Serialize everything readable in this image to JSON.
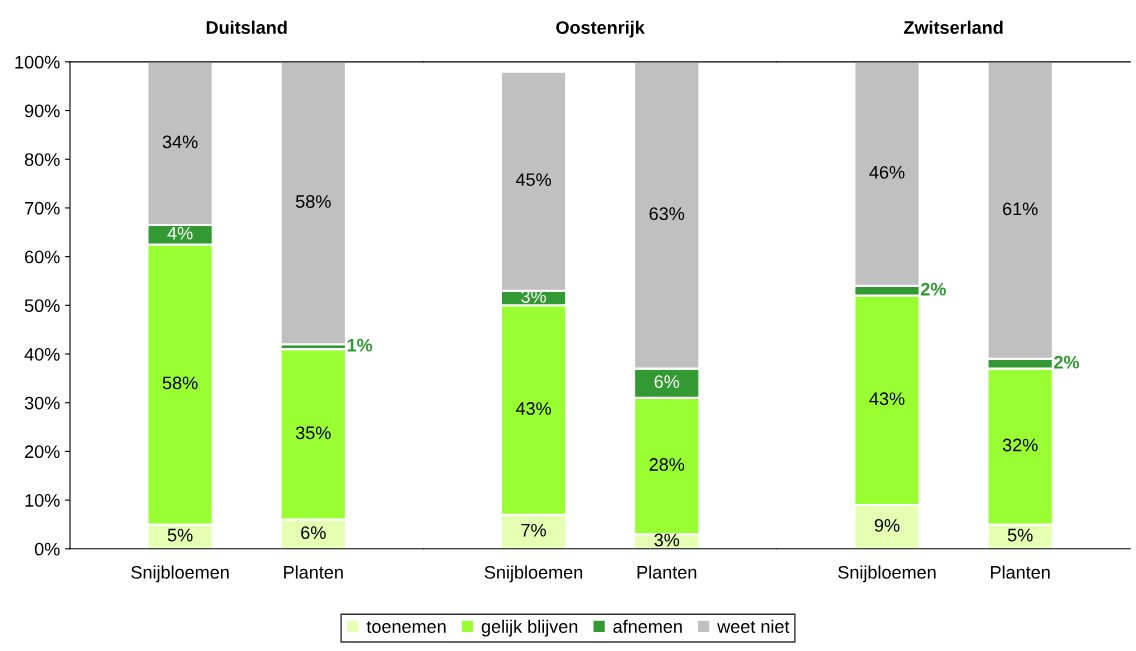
{
  "chart_data": [
    {
      "type": "bar",
      "stacked": true,
      "title": "Duitsland",
      "categories": [
        "Snijbloemen",
        "Planten"
      ],
      "ylim": [
        0,
        100
      ],
      "yticks": [
        {
          "value": 0,
          "label": "0%"
        },
        {
          "value": 10,
          "label": "10%"
        },
        {
          "value": 20,
          "label": "20%"
        },
        {
          "value": 30,
          "label": "30%"
        },
        {
          "value": 40,
          "label": "40%"
        },
        {
          "value": 50,
          "label": "50%"
        },
        {
          "value": 60,
          "label": "60%"
        },
        {
          "value": 70,
          "label": "70%"
        },
        {
          "value": 80,
          "label": "80%"
        },
        {
          "value": 90,
          "label": "90%"
        },
        {
          "value": 100,
          "label": "100%"
        }
      ],
      "legend": "bottom",
      "series": [
        {
          "name": "toenemen",
          "color": "#e5ffb3",
          "values": [
            5,
            6
          ],
          "value_labels": [
            "5%",
            "6%"
          ]
        },
        {
          "name": "gelijk blijven",
          "color": "#99ff33",
          "values": [
            57.5,
            35
          ],
          "value_labels": [
            "58%",
            "35%"
          ]
        },
        {
          "name": "afnemen",
          "color": "#339933",
          "values": [
            4,
            1
          ],
          "value_labels": [
            "4%",
            "1%"
          ]
        },
        {
          "name": "weet niet",
          "color": "#c0c0c0",
          "values": [
            33.5,
            58
          ],
          "value_labels": [
            "34%",
            "58%"
          ]
        }
      ]
    },
    {
      "type": "bar",
      "stacked": true,
      "title": "Oostenrijk",
      "categories": [
        "Snijbloemen",
        "Planten"
      ],
      "ylim": [
        0,
        100
      ],
      "tick_labels": "x",
      "series": [
        {
          "color": "#e5ffb3",
          "values": [
            7,
            3
          ],
          "value_labels": [
            "7%",
            "3%"
          ]
        },
        {
          "color": "#99ff33",
          "values": [
            43,
            28
          ],
          "value_labels": [
            "43%",
            "28%"
          ]
        },
        {
          "color": "#339933",
          "values": [
            3,
            6
          ],
          "value_labels": [
            "3%",
            "6%"
          ]
        },
        {
          "color": "#c0c0c0",
          "values": [
            45,
            63
          ],
          "value_labels": [
            "45%",
            "63%"
          ]
        }
      ]
    },
    {
      "type": "bar",
      "stacked": true,
      "title": "Zwitserland",
      "categories": [
        "Snijbloemen",
        "Planten"
      ],
      "ylim": [
        0,
        100
      ],
      "tick_labels": "x",
      "series": [
        {
          "color": "#e5ffb3",
          "values": [
            9,
            5
          ],
          "value_labels": [
            "9%",
            "5%"
          ]
        },
        {
          "color": "#99ff33",
          "values": [
            43,
            32
          ],
          "value_labels": [
            "43%",
            "32%"
          ]
        },
        {
          "color": "#339933",
          "values": [
            2,
            2
          ],
          "value_labels": [
            "2%",
            "2%"
          ]
        },
        {
          "color": "#c0c0c0",
          "values": [
            46,
            61
          ],
          "value_labels": [
            "46%",
            "61%"
          ]
        }
      ]
    }
  ]
}
